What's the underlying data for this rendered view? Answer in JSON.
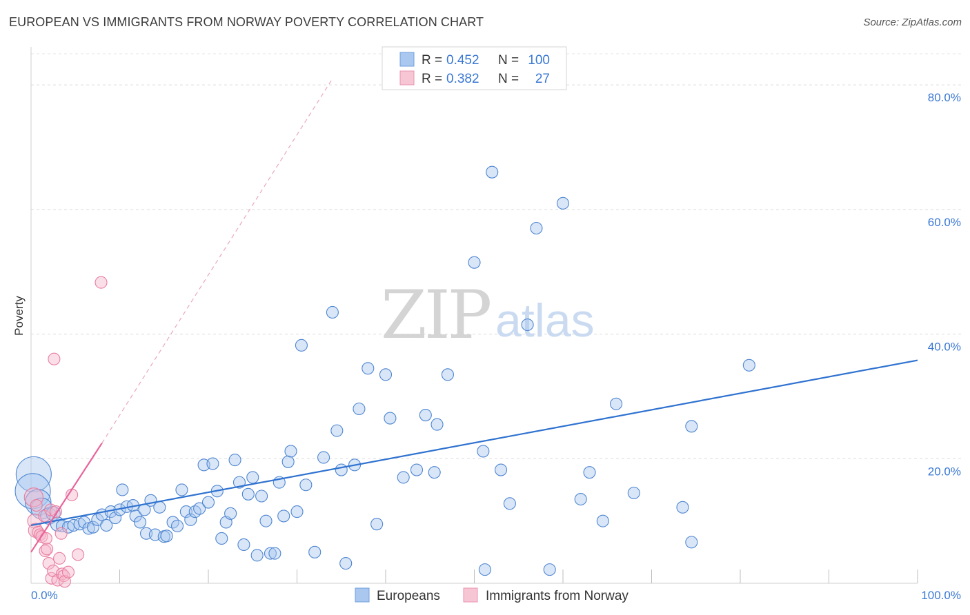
{
  "chart_data": {
    "type": "scatter",
    "title": "EUROPEAN VS IMMIGRANTS FROM NORWAY POVERTY CORRELATION CHART",
    "source": "Source: ZipAtlas.com",
    "xlabel": "",
    "ylabel": "Poverty",
    "xlim": [
      0,
      100
    ],
    "ylim": [
      0,
      85
    ],
    "x_tick_labels": [
      "0.0%",
      "100.0%"
    ],
    "y_ticks": [
      20,
      40,
      60,
      80
    ],
    "y_tick_labels": [
      "20.0%",
      "40.0%",
      "60.0%",
      "80.0%"
    ],
    "grid": true,
    "watermark": {
      "zip": "ZIP",
      "atlas": "atlas"
    },
    "legend": {
      "rows": [
        {
          "r_label": "R =",
          "r_value": "0.452",
          "n_label": "N =",
          "n_value": "100"
        },
        {
          "r_label": "R =",
          "r_value": "0.382",
          "n_label": "N =",
          "n_value": "27"
        }
      ]
    },
    "series": [
      {
        "name": "Europeans",
        "color": "#a9c7ef",
        "stroke": "#4f86d0",
        "line_color": "#2f72d0",
        "trend": {
          "x": [
            0,
            100
          ],
          "y": [
            9.3,
            35.8
          ]
        },
        "points": [
          [
            0.3,
            17.5,
            3
          ],
          [
            0.2,
            14.8,
            3
          ],
          [
            0.8,
            13.0,
            2.2
          ],
          [
            1.2,
            12.0,
            1.8
          ],
          [
            2.0,
            10.8,
            1.4
          ],
          [
            2.5,
            11.2,
            1.2
          ],
          [
            3.0,
            9.5,
            1.2
          ],
          [
            3.5,
            9.2,
            1
          ],
          [
            4.2,
            9.0,
            1
          ],
          [
            4.8,
            9.3,
            1
          ],
          [
            5.5,
            9.5,
            1
          ],
          [
            6.0,
            9.8,
            1
          ],
          [
            6.5,
            8.8,
            1
          ],
          [
            7.0,
            9.0,
            1
          ],
          [
            7.5,
            10.2,
            1
          ],
          [
            8.0,
            11.0,
            1
          ],
          [
            8.5,
            9.3,
            1
          ],
          [
            9.0,
            11.5,
            1
          ],
          [
            9.5,
            10.5,
            1
          ],
          [
            10.0,
            11.8,
            1
          ],
          [
            10.3,
            15.0,
            1
          ],
          [
            10.8,
            12.3,
            1
          ],
          [
            11.5,
            12.5,
            1
          ],
          [
            11.8,
            10.8,
            1
          ],
          [
            12.3,
            9.8,
            1
          ],
          [
            12.8,
            11.8,
            1
          ],
          [
            13.0,
            8.0,
            1
          ],
          [
            13.5,
            13.3,
            1
          ],
          [
            14.0,
            7.8,
            1
          ],
          [
            14.5,
            12.2,
            1
          ],
          [
            15.0,
            7.5,
            1
          ],
          [
            15.3,
            7.6,
            1
          ],
          [
            16.0,
            9.8,
            1
          ],
          [
            16.5,
            9.2,
            1
          ],
          [
            17.0,
            15.0,
            1
          ],
          [
            17.5,
            11.5,
            1
          ],
          [
            18.0,
            10.2,
            1
          ],
          [
            18.5,
            11.5,
            1
          ],
          [
            19.0,
            12.0,
            1
          ],
          [
            19.5,
            19.0,
            1
          ],
          [
            20.0,
            13.0,
            1
          ],
          [
            20.5,
            19.2,
            1
          ],
          [
            21.0,
            14.8,
            1
          ],
          [
            21.5,
            7.2,
            1
          ],
          [
            22.0,
            9.8,
            1
          ],
          [
            22.5,
            11.2,
            1
          ],
          [
            23.0,
            19.8,
            1
          ],
          [
            23.5,
            16.2,
            1
          ],
          [
            24.0,
            6.2,
            1
          ],
          [
            24.5,
            14.3,
            1
          ],
          [
            25.0,
            17.0,
            1
          ],
          [
            25.5,
            4.5,
            1
          ],
          [
            26.0,
            14.0,
            1
          ],
          [
            26.5,
            10.0,
            1
          ],
          [
            27.0,
            4.8,
            1
          ],
          [
            27.5,
            4.8,
            1
          ],
          [
            28.0,
            16.2,
            1
          ],
          [
            28.5,
            10.8,
            1
          ],
          [
            29.0,
            19.5,
            1
          ],
          [
            29.3,
            21.2,
            1
          ],
          [
            30.0,
            11.5,
            1
          ],
          [
            30.5,
            38.2,
            1
          ],
          [
            31.0,
            15.8,
            1
          ],
          [
            32.0,
            5.0,
            1
          ],
          [
            33.0,
            20.2,
            1
          ],
          [
            34.0,
            43.5,
            1
          ],
          [
            34.5,
            24.5,
            1
          ],
          [
            35.0,
            18.2,
            1
          ],
          [
            35.5,
            3.2,
            1
          ],
          [
            36.5,
            19.0,
            1
          ],
          [
            37.0,
            28.0,
            1
          ],
          [
            38.0,
            34.5,
            1
          ],
          [
            39.0,
            9.5,
            1
          ],
          [
            40.0,
            33.5,
            1
          ],
          [
            40.5,
            26.5,
            1
          ],
          [
            42.0,
            17.0,
            1
          ],
          [
            43.5,
            18.2,
            1
          ],
          [
            44.5,
            27.0,
            1
          ],
          [
            45.5,
            17.8,
            1
          ],
          [
            45.8,
            25.5,
            1
          ],
          [
            47.0,
            33.5,
            1
          ],
          [
            50.0,
            51.5,
            1
          ],
          [
            51.0,
            21.2,
            1
          ],
          [
            51.2,
            2.2,
            1
          ],
          [
            52.0,
            66.0,
            1
          ],
          [
            53.0,
            18.2,
            1
          ],
          [
            54.0,
            12.8,
            1
          ],
          [
            56.0,
            41.5,
            1
          ],
          [
            57.0,
            57.0,
            1
          ],
          [
            58.5,
            2.2,
            1
          ],
          [
            60.0,
            61.0,
            1
          ],
          [
            62.0,
            13.5,
            1
          ],
          [
            63.0,
            17.8,
            1
          ],
          [
            64.5,
            10.0,
            1
          ],
          [
            66.0,
            28.8,
            1
          ],
          [
            68.0,
            14.5,
            1
          ],
          [
            73.5,
            12.2,
            1
          ],
          [
            74.5,
            25.2,
            1
          ],
          [
            74.5,
            6.6,
            1
          ],
          [
            81.0,
            35.0,
            1
          ]
        ]
      },
      {
        "name": "Immigrants from Norway",
        "color": "#f7b8cb",
        "stroke": "#e87ea0",
        "line_color": "#e8639a",
        "trend": {
          "x": [
            0,
            8.0
          ],
          "y": [
            5.0,
            22.5
          ]
        },
        "trend_dashed": {
          "x": [
            8.0,
            34.0
          ],
          "y": [
            22.5,
            81.0
          ]
        },
        "points": [
          [
            0.3,
            13.8,
            1.6
          ],
          [
            0.4,
            10.0,
            1.2
          ],
          [
            0.5,
            8.5,
            1.2
          ],
          [
            0.6,
            12.5,
            1
          ],
          [
            0.8,
            8.2,
            1
          ],
          [
            1.0,
            7.8,
            1
          ],
          [
            1.2,
            7.5,
            1
          ],
          [
            1.5,
            10.8,
            1
          ],
          [
            1.6,
            5.2,
            1
          ],
          [
            1.7,
            7.2,
            1
          ],
          [
            1.8,
            5.5,
            1
          ],
          [
            2.0,
            3.2,
            1
          ],
          [
            2.2,
            11.8,
            1
          ],
          [
            2.3,
            0.8,
            1
          ],
          [
            2.5,
            2.0,
            1
          ],
          [
            2.6,
            36.0,
            1
          ],
          [
            2.8,
            11.5,
            1
          ],
          [
            3.0,
            0.5,
            1
          ],
          [
            3.2,
            4.0,
            1
          ],
          [
            3.4,
            8.0,
            1
          ],
          [
            3.5,
            1.5,
            1
          ],
          [
            3.7,
            1.2,
            1
          ],
          [
            3.8,
            0.3,
            1
          ],
          [
            4.2,
            1.8,
            1
          ],
          [
            4.6,
            14.2,
            1
          ],
          [
            5.3,
            4.6,
            1
          ],
          [
            7.9,
            48.3,
            1
          ]
        ]
      }
    ]
  }
}
